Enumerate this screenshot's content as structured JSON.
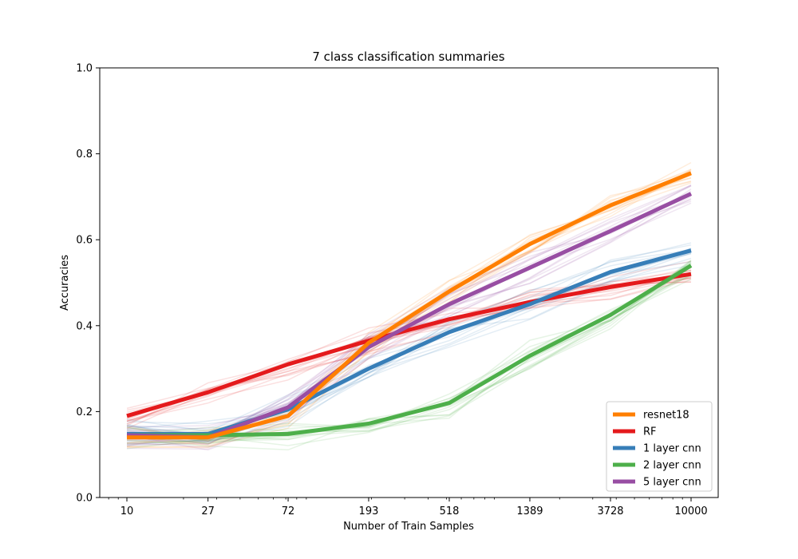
{
  "chart_data": {
    "type": "line",
    "title": "7 class classification summaries",
    "xlabel": "Number of Train Samples",
    "ylabel": "Accuracies",
    "x_scale": "log",
    "x": [
      10,
      27,
      72,
      193,
      518,
      1389,
      3728,
      10000
    ],
    "x_tick_labels": [
      "10",
      "27",
      "72",
      "193",
      "518",
      "1389",
      "3728",
      "10000"
    ],
    "y_ticks": [
      "0.0",
      "0.2",
      "0.4",
      "0.6",
      "0.8",
      "1.0"
    ],
    "ylim": [
      0,
      1
    ],
    "grid": false,
    "legend_position": "lower-right",
    "series": [
      {
        "name": "resnet18",
        "color": "#ff7f00",
        "values": [
          0.14,
          0.14,
          0.19,
          0.36,
          0.48,
          0.59,
          0.68,
          0.755
        ]
      },
      {
        "name": "RF",
        "color": "#e41a1c",
        "values": [
          0.19,
          0.245,
          0.31,
          0.365,
          0.415,
          0.455,
          0.49,
          0.52
        ]
      },
      {
        "name": "1 layer cnn",
        "color": "#377eb8",
        "values": [
          0.148,
          0.148,
          0.205,
          0.3,
          0.385,
          0.45,
          0.525,
          0.575
        ]
      },
      {
        "name": "2 layer cnn",
        "color": "#4daf4a",
        "values": [
          0.145,
          0.145,
          0.148,
          0.172,
          0.22,
          0.33,
          0.425,
          0.54
        ]
      },
      {
        "name": "5 layer cnn",
        "color": "#984ea3",
        "values": [
          0.145,
          0.14,
          0.21,
          0.35,
          0.45,
          0.535,
          0.62,
          0.707
        ]
      }
    ]
  }
}
